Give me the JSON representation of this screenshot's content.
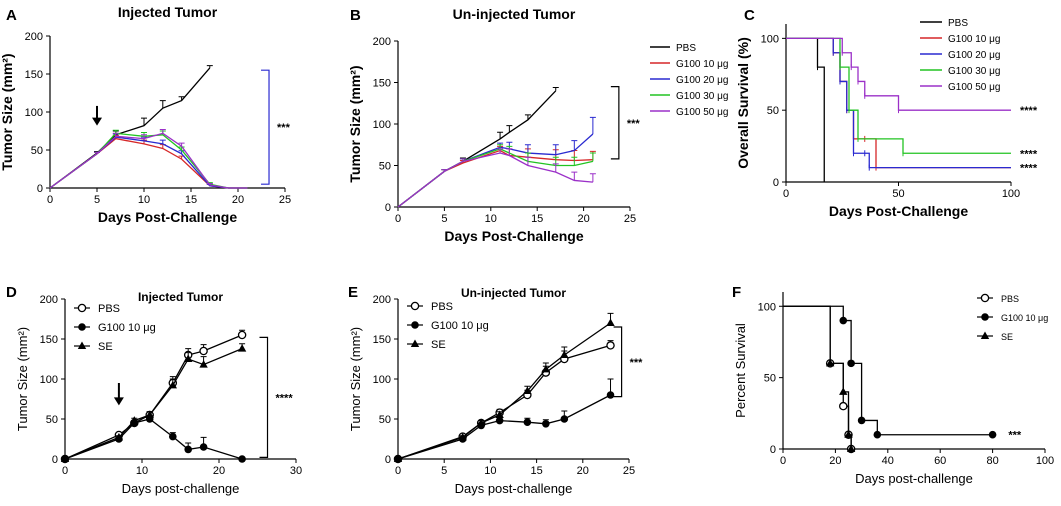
{
  "colors": {
    "PBS": "#000000",
    "G100_10": "#d62728",
    "G100_20": "#2a2ad0",
    "G100_30": "#22c422",
    "G100_50": "#9b30c8",
    "axis": "#000000"
  },
  "chart_data": [
    {
      "id": "A",
      "panel_letter": "A",
      "type": "line",
      "title": "Injected Tumor",
      "xlabel": "Days Post-Challenge",
      "ylabel": "Tumor Size (mm²)",
      "xlim": [
        0,
        25
      ],
      "ylim": [
        0,
        200
      ],
      "xticks": [
        0,
        5,
        10,
        15,
        20,
        25
      ],
      "yticks": [
        0,
        50,
        100,
        150,
        200
      ],
      "arrow_at": {
        "x": 5,
        "y_top": 108,
        "y_bottom": 82
      },
      "bracket": {
        "y_top": 155,
        "y_bottom": 5,
        "x_days": 23.3
      },
      "significance": "***",
      "series": [
        {
          "name": "PBS",
          "color_key": "PBS",
          "x": [
            0,
            5,
            7,
            10,
            12,
            14,
            17
          ],
          "y": [
            0,
            46,
            70,
            82,
            105,
            115,
            158
          ],
          "err": [
            0,
            2,
            5,
            10,
            10,
            5,
            3
          ]
        },
        {
          "name": "G100 10 μg",
          "color_key": "G100_10",
          "x": [
            0,
            5,
            7,
            10,
            12,
            14,
            17,
            19,
            21
          ],
          "y": [
            0,
            45,
            65,
            58,
            52,
            38,
            3,
            0,
            0
          ],
          "err": [
            0,
            2,
            4,
            5,
            5,
            4,
            2,
            0,
            0
          ]
        },
        {
          "name": "G100 20 μg",
          "color_key": "G100_20",
          "x": [
            0,
            5,
            7,
            10,
            12,
            14,
            17,
            19,
            21
          ],
          "y": [
            0,
            45,
            67,
            62,
            58,
            45,
            3,
            0,
            0
          ],
          "err": [
            0,
            2,
            4,
            5,
            5,
            4,
            2,
            0,
            0
          ]
        },
        {
          "name": "G100 30 μg",
          "color_key": "G100_30",
          "x": [
            0,
            5,
            7,
            10,
            12,
            14,
            17,
            19,
            21
          ],
          "y": [
            0,
            45,
            72,
            68,
            70,
            50,
            5,
            0,
            0
          ],
          "err": [
            0,
            2,
            4,
            5,
            5,
            4,
            2,
            0,
            0
          ]
        },
        {
          "name": "G100 50 μg",
          "color_key": "G100_50",
          "x": [
            0,
            5,
            7,
            10,
            12,
            14,
            17,
            19,
            21
          ],
          "y": [
            0,
            45,
            68,
            65,
            72,
            55,
            4,
            0,
            0
          ],
          "err": [
            0,
            2,
            4,
            5,
            5,
            4,
            2,
            0,
            0
          ]
        }
      ]
    },
    {
      "id": "B",
      "panel_letter": "B",
      "type": "line",
      "title": "Un-injected Tumor",
      "xlabel": "Days Post-Challenge",
      "ylabel": "Tumor Size (mm²)",
      "xlim": [
        0,
        25
      ],
      "ylim": [
        0,
        200
      ],
      "xticks": [
        0,
        5,
        10,
        15,
        20,
        25
      ],
      "yticks": [
        0,
        50,
        100,
        150,
        200
      ],
      "bracket": {
        "y_top": 145,
        "y_bottom": 58,
        "x_days": 23.8
      },
      "significance": "***",
      "legend": [
        "PBS",
        "G100 10 μg",
        "G100 20 μg",
        "G100 30 μg",
        "G100 50 μg"
      ],
      "series": [
        {
          "name": "PBS",
          "color_key": "PBS",
          "x": [
            0,
            5,
            7,
            11,
            12,
            14,
            17
          ],
          "y": [
            0,
            43,
            55,
            82,
            90,
            105,
            140
          ],
          "err": [
            0,
            2,
            4,
            8,
            8,
            6,
            4
          ]
        },
        {
          "name": "G100 10 μg",
          "color_key": "G100_10",
          "x": [
            0,
            5,
            7,
            11,
            12,
            14,
            17,
            19,
            21
          ],
          "y": [
            0,
            43,
            53,
            68,
            62,
            60,
            57,
            56,
            57
          ],
          "err": [
            0,
            2,
            3,
            5,
            8,
            10,
            12,
            12,
            10
          ]
        },
        {
          "name": "G100 20 μg",
          "color_key": "G100_20",
          "x": [
            0,
            5,
            7,
            11,
            12,
            14,
            17,
            19,
            21
          ],
          "y": [
            0,
            43,
            55,
            72,
            70,
            65,
            63,
            68,
            88
          ],
          "err": [
            0,
            2,
            3,
            5,
            8,
            10,
            12,
            12,
            20
          ]
        },
        {
          "name": "G100 30 μg",
          "color_key": "G100_30",
          "x": [
            0,
            5,
            7,
            11,
            12,
            14,
            17,
            19,
            21
          ],
          "y": [
            0,
            43,
            55,
            70,
            65,
            55,
            50,
            50,
            55
          ],
          "err": [
            0,
            2,
            3,
            5,
            8,
            10,
            10,
            10,
            10
          ]
        },
        {
          "name": "G100 50 μg",
          "color_key": "G100_50",
          "x": [
            0,
            5,
            7,
            11,
            12,
            14,
            17,
            19,
            21
          ],
          "y": [
            0,
            43,
            55,
            65,
            62,
            50,
            42,
            32,
            30
          ],
          "err": [
            0,
            2,
            3,
            5,
            8,
            10,
            10,
            10,
            10
          ]
        }
      ]
    },
    {
      "id": "C",
      "panel_letter": "C",
      "type": "line",
      "step": true,
      "title": "",
      "xlabel": "Days Post-Challenge",
      "ylabel": "Overall Survival (%)",
      "xlim": [
        0,
        100
      ],
      "ylim": [
        0,
        110
      ],
      "xticks": [
        0,
        50,
        100
      ],
      "yticks": [
        0,
        50,
        100
      ],
      "legend": [
        "PBS",
        "G100 10 μg",
        "G100 20 μg",
        "G100 30 μg",
        "G100 50 μg"
      ],
      "annotations": [
        {
          "text": "****",
          "x_days": 104,
          "y_val": 50
        },
        {
          "text": "****",
          "x_days": 104,
          "y_val": 20
        },
        {
          "text": "****",
          "x_days": 104,
          "y_val": 10
        }
      ],
      "series": [
        {
          "name": "PBS",
          "color_key": "PBS",
          "x": [
            0,
            14,
            17
          ],
          "y": [
            100,
            80,
            0
          ]
        },
        {
          "name": "G100 10 μg",
          "color_key": "G100_10",
          "x": [
            0,
            21,
            24,
            27,
            30,
            35,
            40,
            100
          ],
          "y": [
            100,
            90,
            70,
            50,
            30,
            30,
            10,
            10
          ]
        },
        {
          "name": "G100 20 μg",
          "color_key": "G100_20",
          "x": [
            0,
            21,
            24,
            27,
            30,
            35,
            37,
            100
          ],
          "y": [
            100,
            90,
            70,
            50,
            20,
            20,
            10,
            10
          ]
        },
        {
          "name": "G100 30 μg",
          "color_key": "G100_30",
          "x": [
            0,
            24,
            28,
            32,
            52,
            100
          ],
          "y": [
            100,
            80,
            50,
            30,
            20,
            20
          ]
        },
        {
          "name": "G100 50 μg",
          "color_key": "G100_50",
          "x": [
            0,
            25,
            29,
            32,
            35,
            50,
            100
          ],
          "y": [
            100,
            90,
            80,
            70,
            60,
            50,
            50
          ]
        }
      ]
    },
    {
      "id": "D",
      "panel_letter": "D",
      "type": "line",
      "title": "Injected Tumor",
      "xlabel": "Days post-challenge",
      "ylabel": "Tumor Size (mm²)",
      "xlim": [
        0,
        30
      ],
      "ylim": [
        0,
        200
      ],
      "xticks": [
        0,
        10,
        20,
        30
      ],
      "yticks": [
        0,
        50,
        100,
        150,
        200
      ],
      "arrow_at": {
        "x": 7,
        "y_top": 95,
        "y_bottom": 67
      },
      "bracket": {
        "y_top": 152,
        "y_bottom": 2,
        "x_days": 26.3
      },
      "significance": "****",
      "legend": [
        "PBS",
        "G100 10 μg",
        "SE"
      ],
      "series": [
        {
          "name": "PBS",
          "marker": "open-circle",
          "color_key": "PBS",
          "x": [
            0,
            7,
            9,
            11,
            14,
            16,
            18,
            23
          ],
          "y": [
            0,
            30,
            45,
            55,
            95,
            130,
            135,
            155
          ],
          "err": [
            0,
            2,
            3,
            4,
            8,
            8,
            8,
            6
          ]
        },
        {
          "name": "G100 10 μg",
          "marker": "filled-circle",
          "color_key": "PBS",
          "x": [
            0,
            7,
            9,
            11,
            14,
            16,
            18,
            23
          ],
          "y": [
            0,
            25,
            45,
            50,
            28,
            12,
            15,
            0
          ],
          "err": [
            0,
            2,
            3,
            4,
            5,
            8,
            12,
            0
          ]
        },
        {
          "name": "SE",
          "marker": "triangle",
          "color_key": "PBS",
          "x": [
            0,
            7,
            9,
            11,
            14,
            16,
            18,
            23
          ],
          "y": [
            0,
            27,
            48,
            55,
            92,
            125,
            118,
            138
          ],
          "err": [
            0,
            2,
            3,
            4,
            8,
            8,
            10,
            6
          ]
        }
      ]
    },
    {
      "id": "E",
      "panel_letter": "E",
      "type": "line",
      "title": "Un-injected Tumor",
      "xlabel": "Days post-challenge",
      "ylabel": "Tumor Size (mm²)",
      "xlim": [
        0,
        25
      ],
      "ylim": [
        0,
        200
      ],
      "xticks": [
        0,
        5,
        10,
        15,
        20,
        25
      ],
      "yticks": [
        0,
        50,
        100,
        150,
        200
      ],
      "bracket": {
        "y_top": 165,
        "y_bottom": 78,
        "x_days": 24.2
      },
      "significance": "***",
      "legend": [
        "PBS",
        "G100 10 μg",
        "SE"
      ],
      "series": [
        {
          "name": "PBS",
          "marker": "open-circle",
          "color_key": "PBS",
          "x": [
            0,
            7,
            9,
            11,
            14,
            16,
            18,
            23
          ],
          "y": [
            0,
            28,
            45,
            58,
            80,
            108,
            125,
            142
          ],
          "err": [
            0,
            2,
            3,
            4,
            6,
            8,
            10,
            6
          ]
        },
        {
          "name": "G100 10 μg",
          "marker": "filled-circle",
          "color_key": "PBS",
          "x": [
            0,
            7,
            9,
            11,
            14,
            16,
            18,
            23
          ],
          "y": [
            0,
            25,
            42,
            48,
            46,
            44,
            50,
            80
          ],
          "err": [
            0,
            2,
            3,
            4,
            5,
            5,
            10,
            20
          ]
        },
        {
          "name": "SE",
          "marker": "triangle",
          "color_key": "PBS",
          "x": [
            0,
            7,
            9,
            11,
            14,
            16,
            18,
            23
          ],
          "y": [
            0,
            27,
            45,
            55,
            85,
            112,
            130,
            170
          ],
          "err": [
            0,
            2,
            3,
            4,
            6,
            8,
            10,
            12
          ]
        }
      ]
    },
    {
      "id": "F",
      "panel_letter": "F",
      "type": "line",
      "step": true,
      "title": "",
      "xlabel": "Days post-challenge",
      "ylabel": "Percent Survival",
      "xlim": [
        0,
        100
      ],
      "ylim": [
        0,
        110
      ],
      "xticks": [
        0,
        20,
        40,
        60,
        80,
        100
      ],
      "yticks": [
        0,
        50,
        100
      ],
      "legend": [
        "PBS",
        "G100 10 μg",
        "SE"
      ],
      "annotations": [
        {
          "text": "***",
          "x_days": 86,
          "y_val": 10
        }
      ],
      "series": [
        {
          "name": "PBS",
          "marker": "open-circle",
          "color_key": "PBS",
          "x": [
            0,
            18,
            23,
            25,
            26
          ],
          "y": [
            100,
            60,
            30,
            10,
            0
          ]
        },
        {
          "name": "G100 10 μg",
          "marker": "filled-circle",
          "color_key": "PBS",
          "x": [
            0,
            23,
            26,
            30,
            36,
            80
          ],
          "y": [
            100,
            90,
            60,
            20,
            10,
            10
          ]
        },
        {
          "name": "SE",
          "marker": "triangle",
          "color_key": "PBS",
          "x": [
            0,
            18,
            23,
            25,
            26
          ],
          "y": [
            100,
            60,
            40,
            10,
            0
          ]
        }
      ]
    }
  ]
}
